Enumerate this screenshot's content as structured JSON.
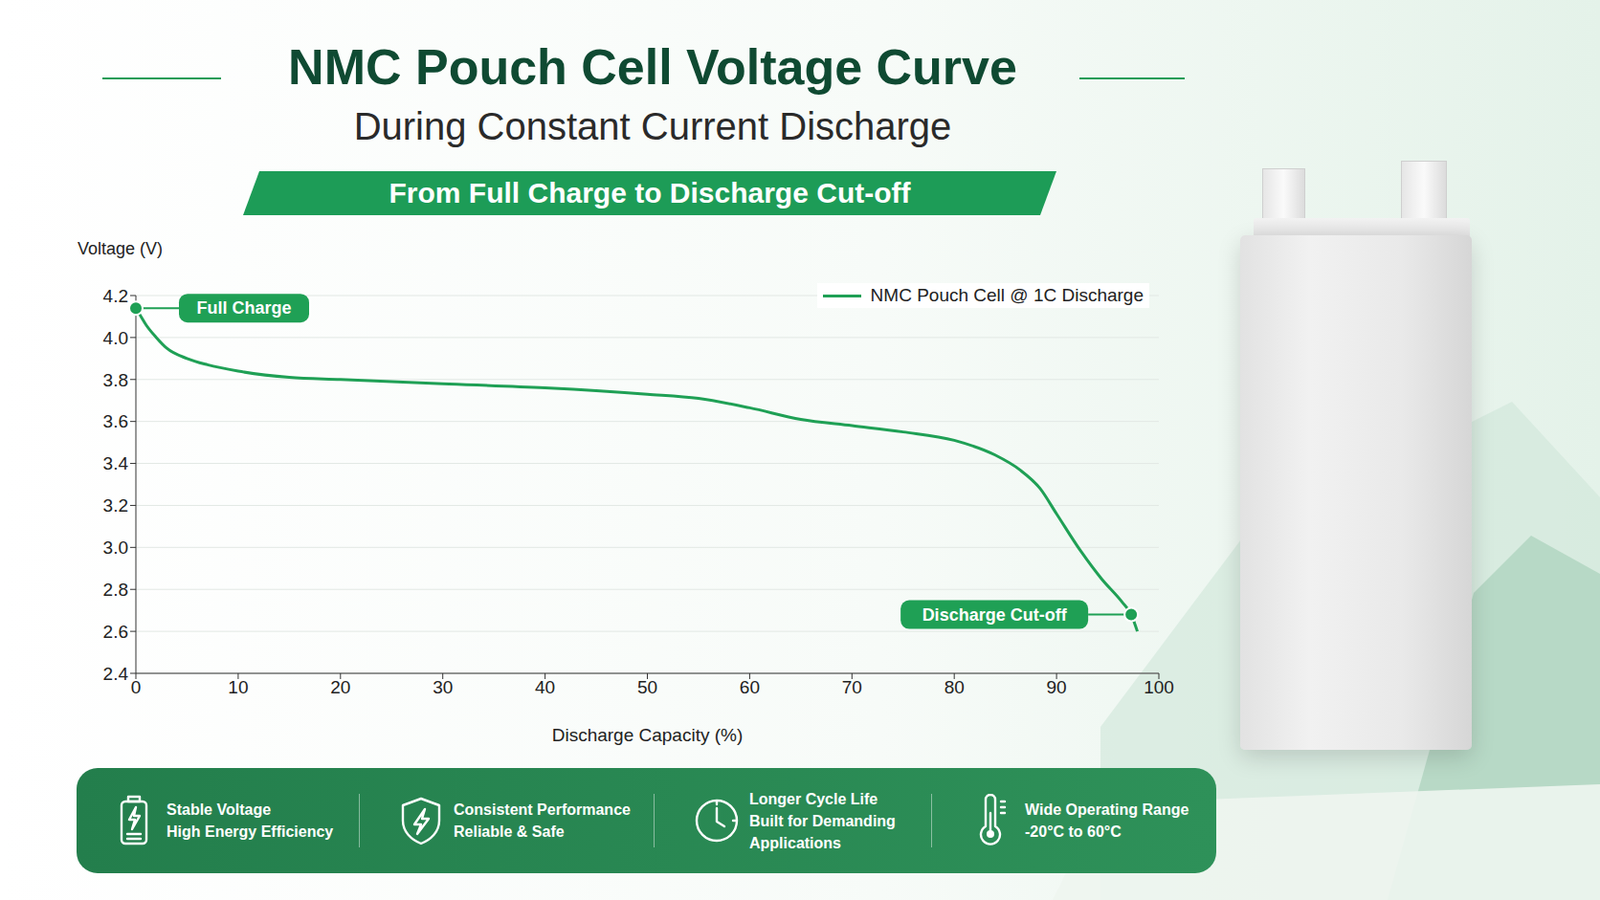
{
  "chart_data": {
    "type": "line",
    "title": "NMC Pouch Cell Voltage Curve",
    "subtitle": "During Constant Current Discharge",
    "banner": "From Full Charge to Discharge Cut-off",
    "x_label": "Discharge Capacity (%)",
    "y_label": "Voltage (V)",
    "x": [
      0,
      0.5,
      1,
      2,
      3,
      5,
      7,
      10,
      15,
      20,
      30,
      40,
      50,
      55,
      60,
      65,
      70,
      75,
      80,
      84,
      86.4,
      88.4,
      90,
      92.4,
      94.4,
      96.4,
      97.3,
      97.9
    ],
    "series": [
      {
        "name": "NMC Pouch Cell @ 1C Discharge",
        "color": "#1fa055",
        "values": [
          4.14,
          4.1,
          4.06,
          4.0,
          3.95,
          3.9,
          3.87,
          3.84,
          3.81,
          3.8,
          3.78,
          3.76,
          3.73,
          3.71,
          3.665,
          3.61,
          3.58,
          3.55,
          3.51,
          3.44,
          3.37,
          3.28,
          3.16,
          2.98,
          2.85,
          2.74,
          2.68,
          2.6
        ]
      }
    ],
    "xlim": [
      0,
      100
    ],
    "xticks": [
      0,
      10,
      20,
      30,
      40,
      50,
      60,
      70,
      80,
      90,
      100
    ],
    "ylim": [
      2.4,
      4.2
    ],
    "yticks": [
      2.4,
      2.6,
      2.8,
      {
        "value": 3,
        "label": "3.0"
      },
      3.2,
      3.4,
      3.6,
      3.8,
      {
        "value": 4,
        "label": "4.0"
      },
      4.2
    ],
    "grid": true,
    "legend": "upper right",
    "marker": "none",
    "line_style": "solid",
    "annotations": [
      {
        "text": "Full Charge",
        "x": 0,
        "y": 4.14
      },
      {
        "text": "Discharge Cut-off",
        "x": 97.3,
        "y": 2.68
      }
    ]
  },
  "features": [
    {
      "title": "Stable Voltage",
      "subtitle": "High Energy Efficiency"
    },
    {
      "title": "Consistent Performance",
      "subtitle": "Reliable & Safe"
    },
    {
      "title": "Longer Cycle Life",
      "subtitle": "Built for Demanding Applications"
    },
    {
      "title": "Wide Operating Range",
      "subtitle": "-20°C to 60°C"
    }
  ]
}
